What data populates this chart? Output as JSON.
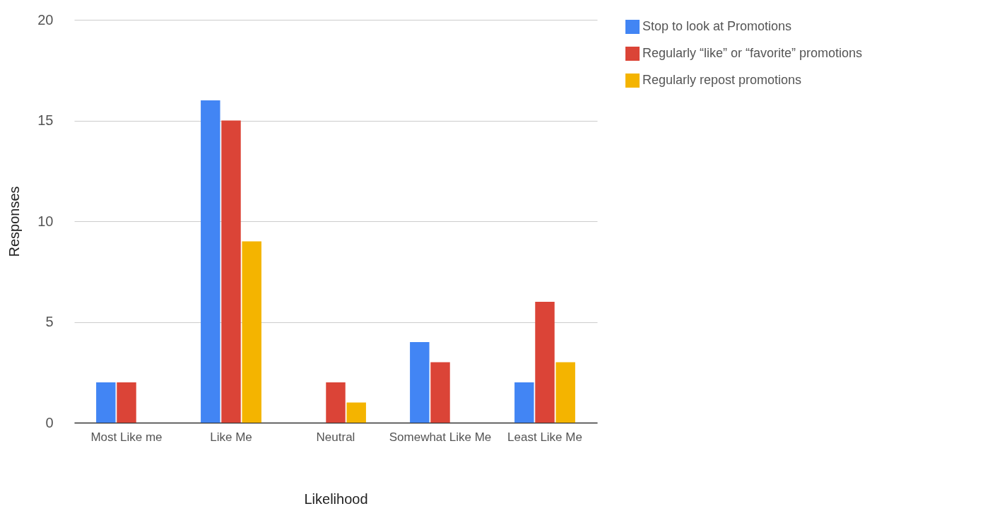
{
  "chart_data": {
    "type": "bar",
    "xlabel": "Likelihood",
    "ylabel": "Responses",
    "categories": [
      "Most Like me",
      "Like Me",
      "Neutral",
      "Somewhat Like Me",
      "Least Like Me"
    ],
    "series": [
      {
        "name": "Stop to look at Promotions",
        "color": "#4285f4",
        "values": [
          2,
          16,
          0,
          4,
          2
        ]
      },
      {
        "name": "Regularly “like” or “favorite” promotions",
        "color": "#db4437",
        "values": [
          2,
          15,
          2,
          3,
          6
        ]
      },
      {
        "name": "Regularly repost promotions",
        "color": "#f4b400",
        "values": [
          0,
          9,
          1,
          0,
          3
        ]
      }
    ],
    "ylim": [
      0,
      20
    ],
    "yticks": [
      0,
      5,
      10,
      15,
      20
    ],
    "grid": "y",
    "legend": "top right"
  }
}
